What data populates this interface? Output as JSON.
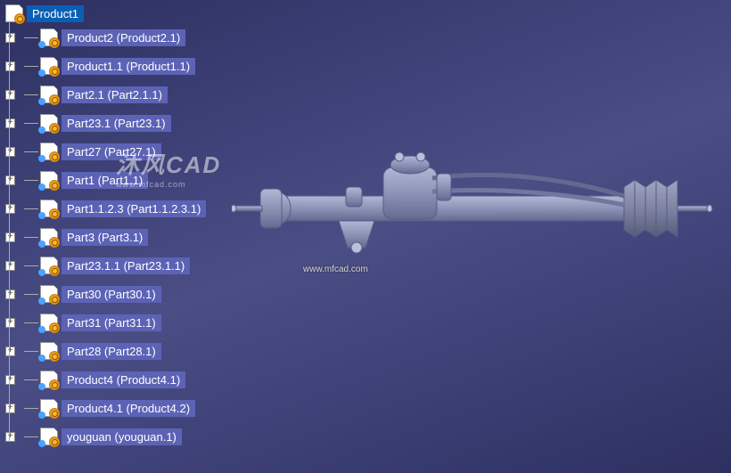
{
  "app": "CATIA",
  "viewport": {
    "background_gradient": [
      "#2d3060",
      "#4a4e85",
      "#2d3060"
    ]
  },
  "tree": {
    "root": {
      "label": "Product1",
      "selected": true,
      "icon": "product"
    },
    "nodes": [
      {
        "label": "Product2 (Product2.1)",
        "icon": "product-linked",
        "expandable": true
      },
      {
        "label": "Product1.1 (Product1.1)",
        "icon": "product-linked",
        "expandable": true
      },
      {
        "label": "Part2.1 (Part2.1.1)",
        "icon": "part-linked",
        "expandable": true
      },
      {
        "label": "Part23.1 (Part23.1)",
        "icon": "part-linked",
        "expandable": true
      },
      {
        "label": "Part27 (Part27.1)",
        "icon": "part-linked",
        "expandable": true
      },
      {
        "label": "Part1 (Part1.1)",
        "icon": "part-linked",
        "expandable": true
      },
      {
        "label": "Part1.1.2.3 (Part1.1.2.3.1)",
        "icon": "part-linked",
        "expandable": true
      },
      {
        "label": "Part3 (Part3.1)",
        "icon": "part-linked",
        "expandable": true
      },
      {
        "label": "Part23.1.1 (Part23.1.1)",
        "icon": "part-linked",
        "expandable": true
      },
      {
        "label": "Part30 (Part30.1)",
        "icon": "part-linked",
        "expandable": true
      },
      {
        "label": "Part31 (Part31.1)",
        "icon": "part-linked",
        "expandable": true
      },
      {
        "label": "Part28 (Part28.1)",
        "icon": "part-linked",
        "expandable": true
      },
      {
        "label": "Product4 (Product4.1)",
        "icon": "product-linked",
        "expandable": true
      },
      {
        "label": "Product4.1 (Product4.2)",
        "icon": "product-linked",
        "expandable": true
      },
      {
        "label": "youguan (youguan.1)",
        "icon": "part-linked",
        "expandable": true
      }
    ]
  },
  "colors": {
    "label_bg": "#5c63b5",
    "label_selected_bg": "#0a5fb5",
    "label_text": "#ffffff",
    "tree_line": "#aaaaaa",
    "expander_bg": "#ffffff",
    "expander_border": "#888888",
    "model_body": "#9aa0bf",
    "model_edge": "#5a5f8a"
  },
  "watermark": {
    "url": "www.mfcad.com",
    "logo_text": "沐风CAD",
    "logo_sub": "www.mfcad.com"
  },
  "model": {
    "description": "steering-rack-assembly",
    "body_color": "#9aa0bf",
    "edge_color": "#5a5f8a",
    "boot_color": "#8a8faa"
  }
}
